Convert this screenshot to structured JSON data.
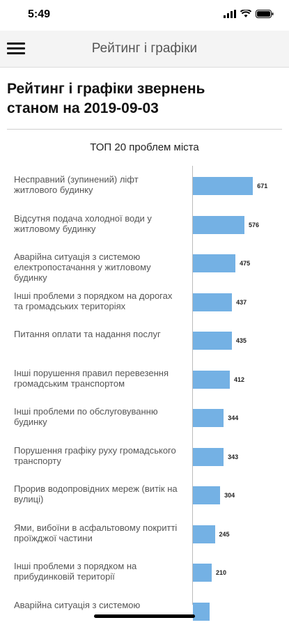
{
  "status_bar": {
    "time": "5:49"
  },
  "navbar": {
    "title": "Рейтинг і графіки"
  },
  "page": {
    "title": "Рейтинг і графіки звернень станом на 2019-09-03"
  },
  "chart_data": {
    "type": "bar",
    "orientation": "horizontal",
    "title": "ТОП 20 проблем міста",
    "categories": [
      "Несправний (зупинений) ліфт житлового будинку",
      "Відсутня подача холодної води у житловому будинку",
      "Аварійна ситуація з системою електропостачання у житловому будинку",
      "Інші проблеми з порядком на дорогах та громадських територіях",
      "Питання оплати та надання послуг",
      "Інші порушення правил перевезення громадським транспортом",
      "Інші проблеми по обслуговуванню будинку",
      "Порушення графіку руху громадського транспорту",
      "Прорив водопровідних мереж (витік на вулиці)",
      "Ями, вибоїни в асфальтовому покритті проїжджої частини",
      "Інші проблеми з порядком на прибудинковій території",
      "Аварійна ситуація з системою"
    ],
    "values": [
      671,
      576,
      475,
      437,
      435,
      412,
      344,
      343,
      304,
      245,
      210,
      null
    ],
    "value_labels": [
      "671",
      "576",
      "475",
      "437",
      "435",
      "412",
      "344",
      "343",
      "304",
      "245",
      "210",
      ""
    ],
    "bar_color": "#74b1e4",
    "xlim": [
      0,
      700
    ]
  }
}
